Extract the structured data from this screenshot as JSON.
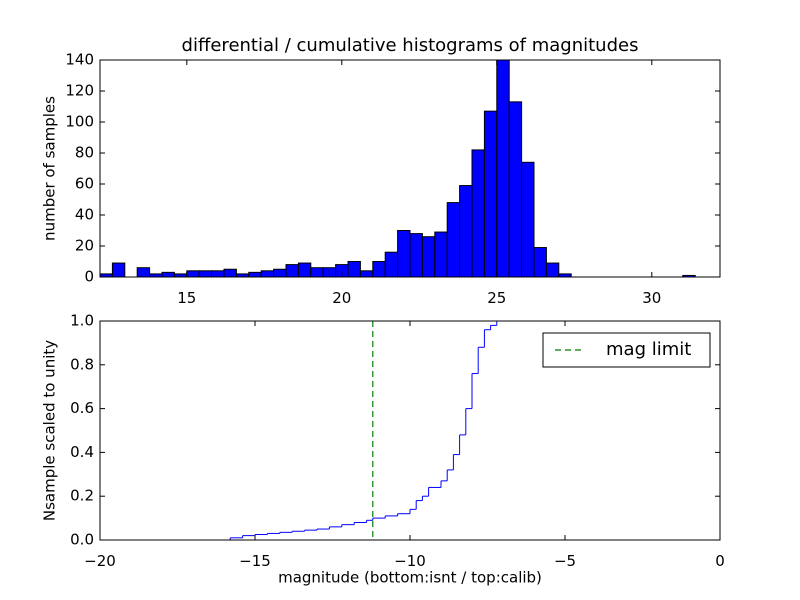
{
  "chart_data": [
    {
      "type": "histogram",
      "title": "differential / cumulative histograms of magnitudes",
      "y_label": "number of samples",
      "bins": [
        12.2,
        12.6,
        13.0,
        13.4,
        13.8,
        14.2,
        14.6,
        15.0,
        15.4,
        15.8,
        16.2,
        16.6,
        17.0,
        17.4,
        17.8,
        18.2,
        18.6,
        19.0,
        19.4,
        19.8,
        20.2,
        20.6,
        21.0,
        21.4,
        21.8,
        22.2,
        22.6,
        23.0,
        23.4,
        23.8,
        24.2,
        24.6,
        25.0,
        25.4,
        25.8,
        26.2,
        26.6,
        27.0,
        27.4,
        27.8,
        28.2,
        28.6,
        29.0,
        29.4,
        29.8,
        30.2,
        30.6,
        31.0,
        31.4,
        31.8,
        32.2
      ],
      "counts": [
        2,
        9,
        0,
        6,
        2,
        3,
        2,
        4,
        4,
        4,
        5,
        2,
        3,
        4,
        5,
        8,
        9,
        6,
        6,
        8,
        10,
        4,
        10,
        16,
        30,
        28,
        26,
        29,
        48,
        59,
        82,
        107,
        140,
        113,
        74,
        19,
        9,
        2,
        0,
        0,
        0,
        0,
        0,
        0,
        0,
        0,
        0,
        1,
        0,
        0
      ],
      "color": "#0000ff",
      "xlim": [
        12.2,
        32.2
      ],
      "xticks": [
        15,
        20,
        25,
        30
      ],
      "ylim": [
        0,
        140
      ],
      "yticks": [
        0,
        20,
        40,
        60,
        80,
        100,
        120,
        140
      ]
    },
    {
      "type": "line",
      "step": "post",
      "x_label": "magnitude (bottom:isnt / top:calib)",
      "y_label": "Nsample scaled to unity",
      "x": [
        -20,
        -15.8,
        -15.4,
        -15,
        -14.6,
        -14.2,
        -13.8,
        -13.4,
        -13,
        -12.6,
        -12.2,
        -11.8,
        -11.4,
        -11.2,
        -10.8,
        -10.4,
        -10,
        -9.8,
        -9.6,
        -9.4,
        -9,
        -8.8,
        -8.6,
        -8.4,
        -8.2,
        -8,
        -7.8,
        -7.6,
        -7.4,
        -7.2
      ],
      "series": [
        {
          "color": "#0000ff",
          "values": [
            0,
            0.01,
            0.02,
            0.025,
            0.03,
            0.035,
            0.04,
            0.045,
            0.05,
            0.06,
            0.07,
            0.08,
            0.09,
            0.1,
            0.11,
            0.12,
            0.14,
            0.18,
            0.2,
            0.24,
            0.27,
            0.32,
            0.39,
            0.48,
            0.6,
            0.76,
            0.88,
            0.96,
            0.98,
            1.0
          ]
        }
      ],
      "vlines": [
        {
          "x": -11.2,
          "name": "mag limit",
          "color": "#008000",
          "style": "dashed"
        }
      ],
      "legend": "upper right",
      "xlim": [
        -20,
        0
      ],
      "xticks": [
        {
          "value": -20,
          "label": "−20"
        },
        {
          "value": -15,
          "label": "−15"
        },
        {
          "value": -10,
          "label": "−10"
        },
        {
          "value": -5,
          "label": "−5"
        },
        0
      ],
      "ylim": [
        0,
        1
      ],
      "yticks": [
        {
          "value": 0,
          "label": "0.0"
        },
        0.2,
        0.4,
        0.6,
        0.8,
        {
          "value": 1,
          "label": "1.0"
        }
      ]
    }
  ]
}
